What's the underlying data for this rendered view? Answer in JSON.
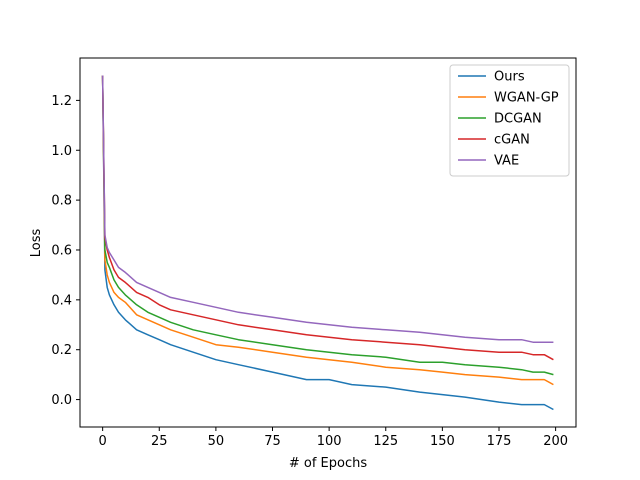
{
  "chart_data": {
    "type": "line",
    "title": "",
    "xlabel": "# of Epochs",
    "ylabel": "Loss",
    "xlim": [
      -10,
      209
    ],
    "ylim": [
      -0.11,
      1.37
    ],
    "xticks": [
      0,
      25,
      50,
      75,
      100,
      125,
      150,
      175,
      200
    ],
    "yticks": [
      0.0,
      0.2,
      0.4,
      0.6,
      0.8,
      1.0,
      1.2
    ],
    "grid": false,
    "legend_position": "top-right",
    "x": [
      0,
      1,
      2,
      3,
      5,
      7,
      10,
      15,
      20,
      25,
      30,
      40,
      50,
      60,
      75,
      90,
      100,
      110,
      125,
      140,
      150,
      160,
      175,
      185,
      190,
      195,
      199
    ],
    "series": [
      {
        "name": "Ours",
        "color": "#1f77b4",
        "values": [
          1.3,
          0.52,
          0.45,
          0.42,
          0.38,
          0.35,
          0.32,
          0.28,
          0.26,
          0.24,
          0.22,
          0.19,
          0.16,
          0.14,
          0.11,
          0.08,
          0.08,
          0.06,
          0.05,
          0.03,
          0.02,
          0.01,
          -0.01,
          -0.02,
          -0.02,
          -0.02,
          -0.04
        ]
      },
      {
        "name": "WGAN-GP",
        "color": "#ff7f0e",
        "values": [
          1.3,
          0.56,
          0.5,
          0.47,
          0.43,
          0.41,
          0.39,
          0.34,
          0.32,
          0.3,
          0.28,
          0.25,
          0.22,
          0.21,
          0.19,
          0.17,
          0.16,
          0.15,
          0.13,
          0.12,
          0.11,
          0.1,
          0.09,
          0.08,
          0.08,
          0.08,
          0.06
        ]
      },
      {
        "name": "DCGAN",
        "color": "#2ca02c",
        "values": [
          1.3,
          0.6,
          0.55,
          0.53,
          0.48,
          0.45,
          0.42,
          0.38,
          0.35,
          0.33,
          0.31,
          0.28,
          0.26,
          0.24,
          0.22,
          0.2,
          0.19,
          0.18,
          0.17,
          0.15,
          0.15,
          0.14,
          0.13,
          0.12,
          0.11,
          0.11,
          0.1
        ]
      },
      {
        "name": "cGAN",
        "color": "#d62728",
        "values": [
          1.3,
          0.65,
          0.6,
          0.57,
          0.52,
          0.49,
          0.47,
          0.43,
          0.41,
          0.38,
          0.36,
          0.34,
          0.32,
          0.3,
          0.28,
          0.26,
          0.25,
          0.24,
          0.23,
          0.22,
          0.21,
          0.2,
          0.19,
          0.19,
          0.18,
          0.18,
          0.16
        ]
      },
      {
        "name": "VAE",
        "color": "#9467bd",
        "values": [
          1.3,
          0.66,
          0.61,
          0.59,
          0.56,
          0.53,
          0.51,
          0.47,
          0.45,
          0.43,
          0.41,
          0.39,
          0.37,
          0.35,
          0.33,
          0.31,
          0.3,
          0.29,
          0.28,
          0.27,
          0.26,
          0.25,
          0.24,
          0.24,
          0.23,
          0.23,
          0.23
        ]
      }
    ]
  }
}
